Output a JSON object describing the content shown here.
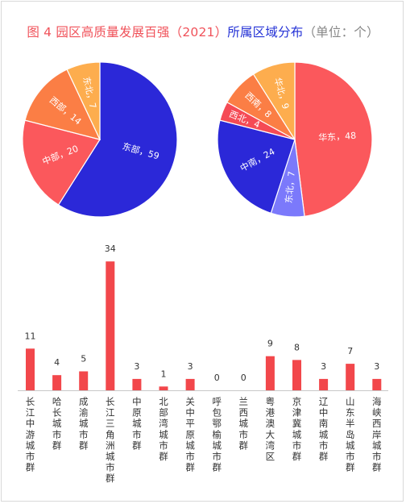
{
  "title": {
    "part1": "图 4 园区高质量发展百强（2021）",
    "part2": "所属区域分布",
    "part3": "（单位：个）"
  },
  "colors": {
    "title_red": "#f0525a",
    "title_blue": "#2432d6",
    "title_gray": "#888888",
    "bar": "#f2474b"
  },
  "chart_data": [
    {
      "type": "pie",
      "slices": [
        {
          "label": "东部",
          "text": "东部，59",
          "value": 59,
          "color": "#2b28d8"
        },
        {
          "label": "中部",
          "text": "中部，20",
          "value": 20,
          "color": "#fb585c"
        },
        {
          "label": "西部",
          "text": "西部，14",
          "value": 14,
          "color": "#fb7e45"
        },
        {
          "label": "东北",
          "text": "东北，7",
          "value": 7,
          "color": "#fdad4e"
        }
      ]
    },
    {
      "type": "pie",
      "slices": [
        {
          "label": "华东",
          "text": "华东，48",
          "value": 48,
          "color": "#fb585c"
        },
        {
          "label": "东北",
          "text": "东北，7",
          "value": 7,
          "color": "#7b79fb"
        },
        {
          "label": "中南",
          "text": "中南，24",
          "value": 24,
          "color": "#2b28d8"
        },
        {
          "label": "西北",
          "text": "西北，4",
          "value": 4,
          "color": "#f54a55"
        },
        {
          "label": "西南",
          "text": "西南，8",
          "value": 8,
          "color": "#fb7e45"
        },
        {
          "label": "华北",
          "text": "华北，9",
          "value": 9,
          "color": "#fdad4e"
        }
      ]
    },
    {
      "type": "bar",
      "categories": [
        "长江中游城市群",
        "哈长城市群",
        "成渝城市群",
        "长江三角洲城市群",
        "中原城市群",
        "北部湾城市群",
        "关中平原城市群",
        "呼包鄂榆城市群",
        "兰西城市群",
        "粤港澳大湾区",
        "京津冀城市群",
        "辽中南城市群",
        "山东半岛城市群",
        "海峡西岸城市群"
      ],
      "values": [
        11,
        4,
        5,
        34,
        3,
        1,
        3,
        0,
        0,
        9,
        8,
        3,
        7,
        3
      ],
      "color": "#f2474b"
    }
  ]
}
